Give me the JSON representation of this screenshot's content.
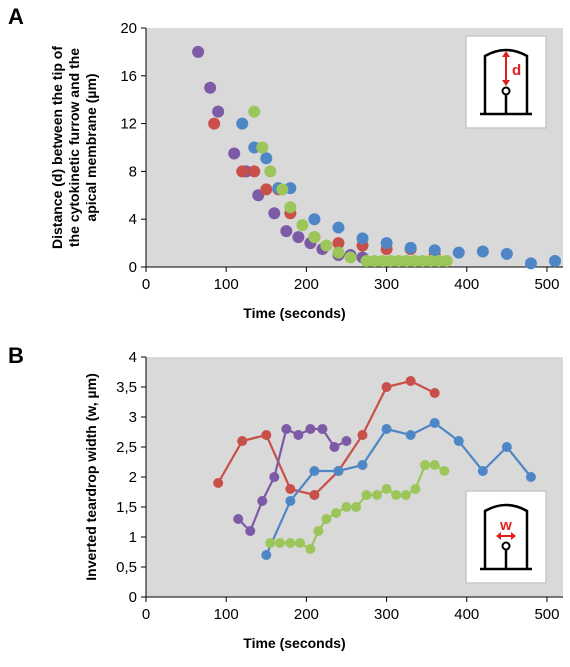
{
  "colors": {
    "red": "#c9504a",
    "blue": "#4f86c6",
    "green": "#9cc65a",
    "purple": "#7c5aa6",
    "plot_bg": "#d9d9d9"
  },
  "chart_data": [
    {
      "panel": "A",
      "type": "scatter",
      "xlabel": "Time (seconds)",
      "ylabel_lines": [
        "Distance (d) between the tip of",
        "the cytokinetic furrow and the",
        "apical membrane (µm)"
      ],
      "xlim": [
        0,
        520
      ],
      "ylim": [
        0,
        20
      ],
      "xticks": [
        0,
        100,
        200,
        300,
        400,
        500
      ],
      "yticks": [
        0,
        4,
        8,
        12,
        16,
        20
      ],
      "inset_label": "d",
      "series": [
        {
          "color": "purple",
          "x": [
            65,
            80,
            90,
            110,
            125,
            140,
            160,
            175,
            190,
            205,
            220,
            240,
            255,
            270
          ],
          "y": [
            18,
            15,
            13,
            9.5,
            8,
            6,
            4.5,
            3,
            2.5,
            2,
            1.5,
            1,
            1,
            0.8
          ]
        },
        {
          "color": "red",
          "x": [
            85,
            120,
            135,
            150,
            165,
            180,
            210,
            240,
            270,
            300,
            330,
            360
          ],
          "y": [
            12,
            8,
            8,
            6.5,
            6.5,
            4.5,
            2.5,
            2,
            1.8,
            1.5,
            1.5,
            1
          ]
        },
        {
          "color": "blue",
          "x": [
            120,
            135,
            150,
            165,
            180,
            210,
            240,
            270,
            300,
            330,
            360,
            390,
            420,
            450,
            480,
            510
          ],
          "y": [
            12,
            10,
            9.1,
            6.6,
            6.6,
            4,
            3.3,
            2.4,
            2,
            1.6,
            1.4,
            1.2,
            1.3,
            1.1,
            0.3,
            0.5
          ]
        },
        {
          "color": "green",
          "x": [
            135,
            145,
            155,
            170,
            180,
            195,
            210,
            225,
            240,
            255,
            275,
            285,
            295,
            305,
            315,
            325,
            335,
            345,
            355,
            365,
            375
          ],
          "y": [
            13,
            10,
            8,
            6.5,
            5,
            3.5,
            2.5,
            1.8,
            1.2,
            0.8,
            0.5,
            0.5,
            0.5,
            0.5,
            0.5,
            0.5,
            0.5,
            0.5,
            0.5,
            0.5,
            0.5
          ]
        }
      ]
    },
    {
      "panel": "B",
      "type": "line",
      "xlabel": "Time (seconds)",
      "ylabel": "Inverted teardrop width (w, µm)",
      "xlim": [
        0,
        520
      ],
      "ylim": [
        0,
        4
      ],
      "xticks": [
        0,
        100,
        200,
        300,
        400,
        500
      ],
      "ytick_labels": [
        "0",
        "0,5",
        "1",
        "1,5",
        "2",
        "2,5",
        "3",
        "3,5",
        "4"
      ],
      "inset_label": "w",
      "series": [
        {
          "color": "red",
          "x": [
            90,
            120,
            150,
            180,
            210,
            240,
            270,
            300,
            330,
            360
          ],
          "y": [
            1.9,
            2.6,
            2.7,
            1.8,
            1.7,
            2.1,
            2.7,
            3.5,
            3.6,
            3.4
          ]
        },
        {
          "color": "purple",
          "x": [
            115,
            130,
            145,
            160,
            175,
            190,
            205,
            220,
            235,
            250
          ],
          "y": [
            1.3,
            1.1,
            1.6,
            2.0,
            2.8,
            2.7,
            2.8,
            2.8,
            2.5,
            2.6
          ]
        },
        {
          "color": "blue",
          "x": [
            150,
            180,
            210,
            240,
            270,
            300,
            330,
            360,
            390,
            420,
            450,
            480
          ],
          "y": [
            0.7,
            1.6,
            2.1,
            2.1,
            2.2,
            2.8,
            2.7,
            2.9,
            2.6,
            2.1,
            2.5,
            2.0
          ]
        },
        {
          "color": "green",
          "x": [
            155,
            167,
            180,
            192,
            205,
            215,
            225,
            237,
            250,
            262,
            275,
            288,
            300,
            312,
            324,
            336,
            348,
            360,
            372
          ],
          "y": [
            0.9,
            0.9,
            0.9,
            0.9,
            0.8,
            1.1,
            1.3,
            1.4,
            1.5,
            1.5,
            1.7,
            1.7,
            1.8,
            1.7,
            1.7,
            1.8,
            2.2,
            2.2,
            2.1
          ]
        }
      ]
    }
  ]
}
